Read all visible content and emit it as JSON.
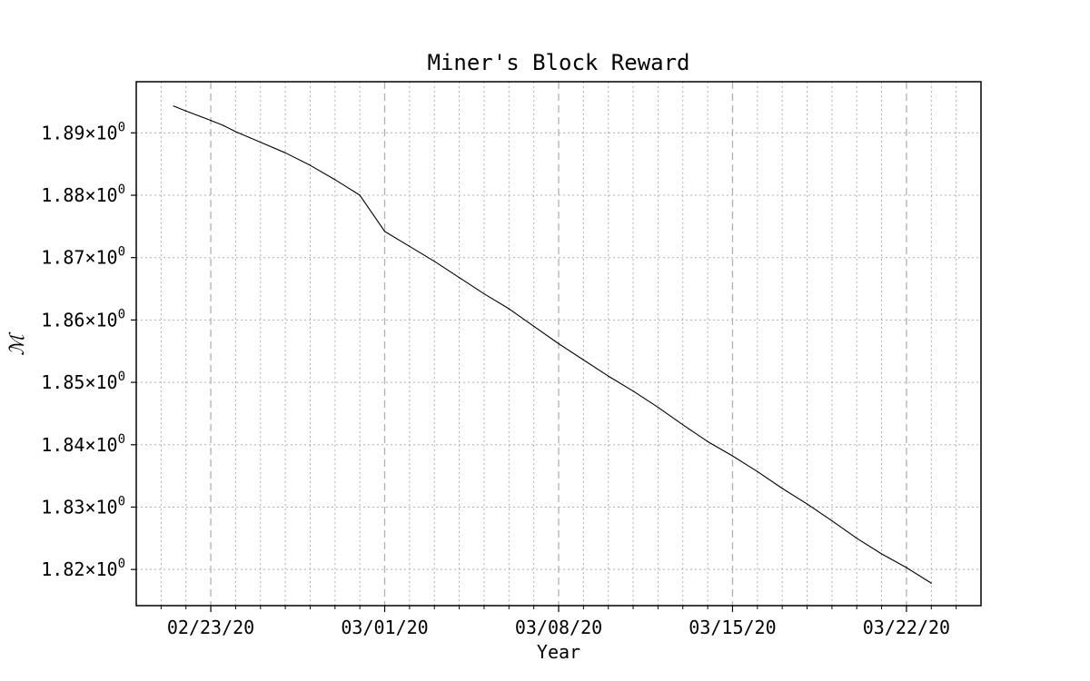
{
  "chart_data": {
    "type": "line",
    "title": "Miner's Block Reward",
    "xlabel": "Year",
    "ylabel": "ℳ",
    "x_axis_type": "date",
    "xlim": [
      "2020-02-20",
      "2020-03-25"
    ],
    "ylim": [
      1.8142,
      1.8982
    ],
    "x_ticks": [
      {
        "value": "2020-02-23",
        "label": "02/23/20"
      },
      {
        "value": "2020-03-01",
        "label": "03/01/20"
      },
      {
        "value": "2020-03-08",
        "label": "03/08/20"
      },
      {
        "value": "2020-03-15",
        "label": "03/15/20"
      },
      {
        "value": "2020-03-22",
        "label": "03/22/20"
      }
    ],
    "x_minor_ticks_interval": "1 day",
    "y_ticks": [
      {
        "value": 1.82,
        "mantissa": "1.82",
        "base": "×10",
        "exponent": "0"
      },
      {
        "value": 1.83,
        "mantissa": "1.83",
        "base": "×10",
        "exponent": "0"
      },
      {
        "value": 1.84,
        "mantissa": "1.84",
        "base": "×10",
        "exponent": "0"
      },
      {
        "value": 1.85,
        "mantissa": "1.85",
        "base": "×10",
        "exponent": "0"
      },
      {
        "value": 1.86,
        "mantissa": "1.86",
        "base": "×10",
        "exponent": "0"
      },
      {
        "value": 1.87,
        "mantissa": "1.87",
        "base": "×10",
        "exponent": "0"
      },
      {
        "value": 1.88,
        "mantissa": "1.88",
        "base": "×10",
        "exponent": "0"
      },
      {
        "value": 1.89,
        "mantissa": "1.89",
        "base": "×10",
        "exponent": "0"
      }
    ],
    "grid": true,
    "legend": "none",
    "series": [
      {
        "color": "#000000",
        "points": [
          {
            "x": "2020-02-21T12:00",
            "y": 1.8943
          },
          {
            "x": "2020-02-22T00:00",
            "y": 1.8935
          },
          {
            "x": "2020-02-23T00:00",
            "y": 1.892
          },
          {
            "x": "2020-02-23T12:00",
            "y": 1.8912
          },
          {
            "x": "2020-02-24T00:00",
            "y": 1.8902
          },
          {
            "x": "2020-02-25T00:00",
            "y": 1.8885
          },
          {
            "x": "2020-02-26T00:00",
            "y": 1.8868
          },
          {
            "x": "2020-02-27T00:00",
            "y": 1.8848
          },
          {
            "x": "2020-02-28T00:00",
            "y": 1.8825
          },
          {
            "x": "2020-02-29T00:00",
            "y": 1.88
          },
          {
            "x": "2020-03-01T00:00",
            "y": 1.8742
          },
          {
            "x": "2020-03-02T00:00",
            "y": 1.8718
          },
          {
            "x": "2020-03-03T00:00",
            "y": 1.8694
          },
          {
            "x": "2020-03-04T00:00",
            "y": 1.8668
          },
          {
            "x": "2020-03-05T00:00",
            "y": 1.8642
          },
          {
            "x": "2020-03-06T00:00",
            "y": 1.8618
          },
          {
            "x": "2020-03-07T00:00",
            "y": 1.859
          },
          {
            "x": "2020-03-08T00:00",
            "y": 1.8562
          },
          {
            "x": "2020-03-09T00:00",
            "y": 1.8536
          },
          {
            "x": "2020-03-10T00:00",
            "y": 1.851
          },
          {
            "x": "2020-03-11T00:00",
            "y": 1.8486
          },
          {
            "x": "2020-03-12T00:00",
            "y": 1.846
          },
          {
            "x": "2020-03-13T00:00",
            "y": 1.8432
          },
          {
            "x": "2020-03-14T00:00",
            "y": 1.8405
          },
          {
            "x": "2020-03-15T00:00",
            "y": 1.8382
          },
          {
            "x": "2020-03-16T00:00",
            "y": 1.8357
          },
          {
            "x": "2020-03-17T00:00",
            "y": 1.833
          },
          {
            "x": "2020-03-18T00:00",
            "y": 1.8305
          },
          {
            "x": "2020-03-19T00:00",
            "y": 1.8278
          },
          {
            "x": "2020-03-20T00:00",
            "y": 1.825
          },
          {
            "x": "2020-03-21T00:00",
            "y": 1.8225
          },
          {
            "x": "2020-03-22T00:00",
            "y": 1.8203
          },
          {
            "x": "2020-03-23T00:00",
            "y": 1.8178
          }
        ]
      }
    ]
  }
}
